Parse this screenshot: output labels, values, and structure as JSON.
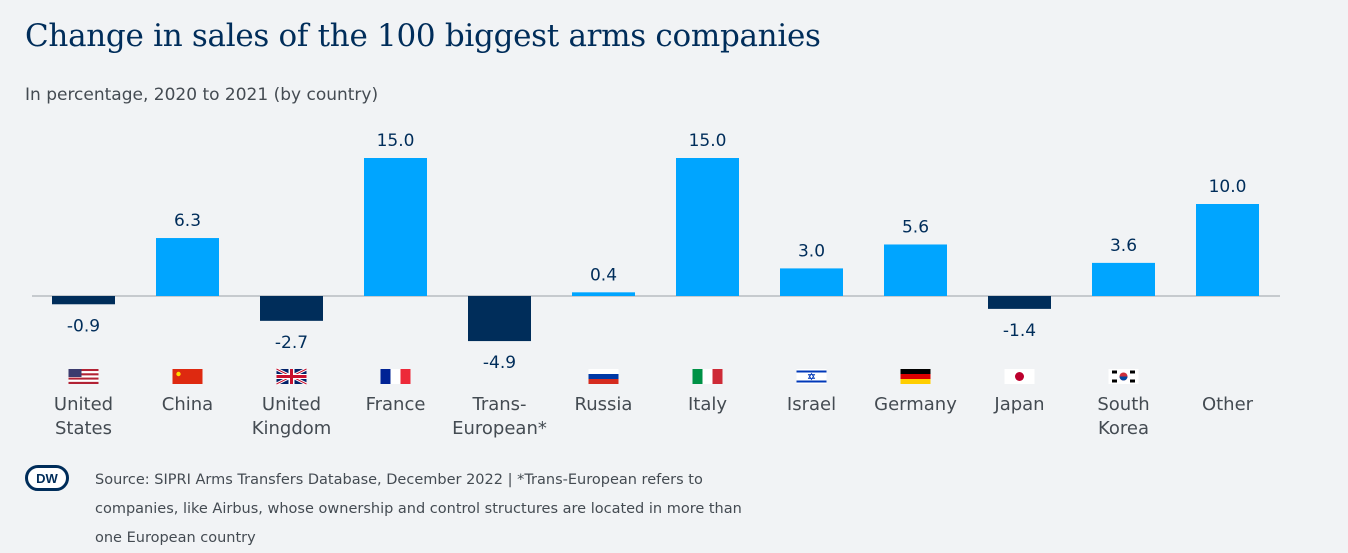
{
  "header": {
    "title": "Change in sales of the 100 biggest arms companies",
    "subtitle": "In percentage, 2020 to 2021 (by country)"
  },
  "colors": {
    "positive": "#00a5ff",
    "negative": "#002d5a",
    "text": "#002d5a",
    "label": "#444b52"
  },
  "chart_data": {
    "type": "bar",
    "categories": [
      "United States",
      "China",
      "United Kingdom",
      "France",
      "Trans-European*",
      "Russia",
      "Italy",
      "Israel",
      "Germany",
      "Japan",
      "South Korea",
      "Other"
    ],
    "category_lines": [
      [
        "United",
        "States"
      ],
      [
        "China"
      ],
      [
        "United",
        "Kingdom"
      ],
      [
        "France"
      ],
      [
        "Trans-",
        "European*"
      ],
      [
        "Russia"
      ],
      [
        "Italy"
      ],
      [
        "Israel"
      ],
      [
        "Germany"
      ],
      [
        "Japan"
      ],
      [
        "South",
        "Korea"
      ],
      [
        "Other"
      ]
    ],
    "values": [
      -0.9,
      6.3,
      -2.7,
      15.0,
      -4.9,
      0.4,
      15.0,
      3.0,
      5.6,
      -1.4,
      3.6,
      10.0
    ],
    "value_labels": [
      "-0.9",
      "6.3",
      "-2.7",
      "15.0",
      "-4.9",
      "0.4",
      "15.0",
      "3.0",
      "5.6",
      "-1.4",
      "3.6",
      "10.0"
    ],
    "flags": [
      "us-flag-icon",
      "china-flag-icon",
      "uk-flag-icon",
      "france-flag-icon",
      "",
      "russia-flag-icon",
      "italy-flag-icon",
      "israel-flag-icon",
      "germany-flag-icon",
      "japan-flag-icon",
      "south-korea-flag-icon",
      ""
    ],
    "title": "Change in sales of the 100 biggest arms companies",
    "subtitle": "In percentage, 2020 to 2021 (by country)",
    "xlabel": "",
    "ylabel": "",
    "ylim": [
      -5,
      15
    ],
    "grid": false,
    "legend": "none"
  },
  "footer": {
    "logo_text": "DW",
    "source": "Source: SIPRI Arms Transfers Database, December 2022 | *Trans-European refers to companies, like Airbus, whose ownership and control structures are located in more than one European country"
  }
}
